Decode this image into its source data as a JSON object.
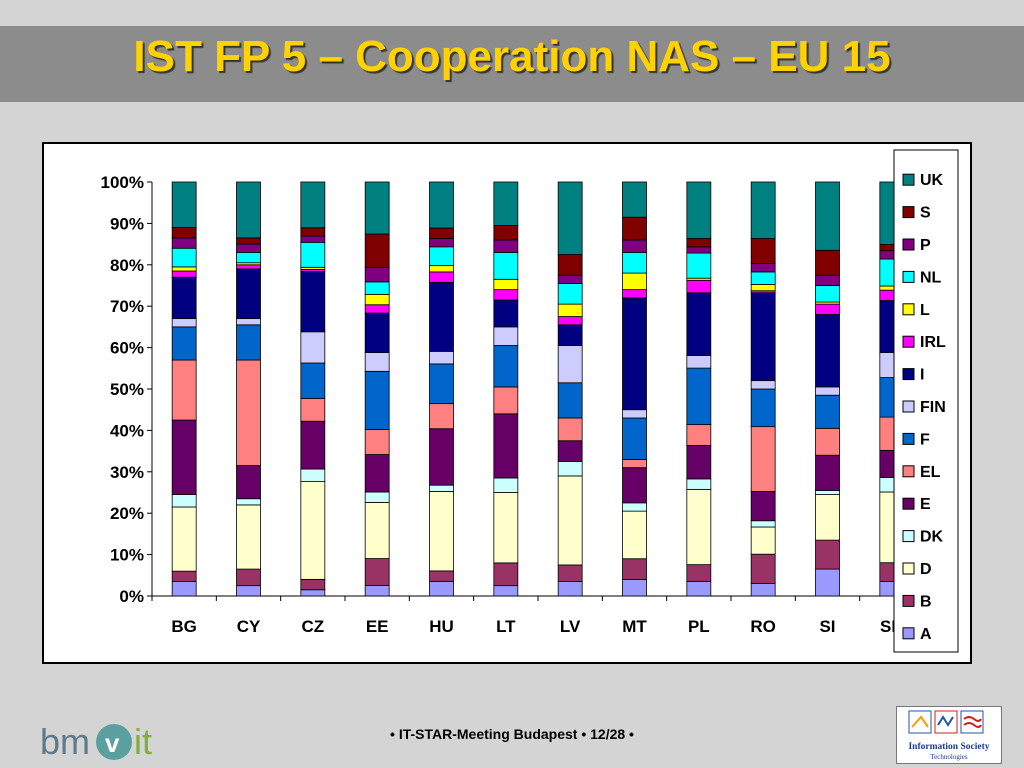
{
  "slide": {
    "title": "IST FP 5 – Cooperation NAS – EU 15",
    "footer": "• IT-STAR-Meeting Budapest • 12/28 •",
    "logo_left_text": "bmvit",
    "logo_right_text": "Information Society Technologies"
  },
  "colors": {
    "title": "#ffd200",
    "title_bar": "#8c8c8c",
    "background": "#d4d4d4"
  },
  "chart_data": {
    "type": "bar",
    "stacked": "percent",
    "categories": [
      "BG",
      "CY",
      "CZ",
      "EE",
      "HU",
      "LT",
      "LV",
      "MT",
      "PL",
      "RO",
      "SI",
      "SK"
    ],
    "ylim": [
      0,
      100
    ],
    "yticks": [
      "0%",
      "10%",
      "20%",
      "30%",
      "40%",
      "50%",
      "60%",
      "70%",
      "80%",
      "90%",
      "100%"
    ],
    "legend_position": "right",
    "series": [
      {
        "name": "A",
        "color": "#9999ff",
        "values": [
          3.5,
          2.5,
          1.5,
          2.5,
          3.5,
          2.5,
          3.5,
          4.0,
          3.5,
          3.0,
          6.5,
          3.5
        ]
      },
      {
        "name": "B",
        "color": "#993366",
        "values": [
          2.5,
          4.0,
          2.5,
          6.5,
          2.5,
          5.5,
          4.0,
          5.0,
          4.0,
          7.0,
          7.0,
          4.5
        ]
      },
      {
        "name": "D",
        "color": "#ffffcc",
        "values": [
          15.5,
          15.5,
          23.5,
          13.5,
          19.0,
          17.0,
          21.5,
          11.5,
          18.0,
          6.5,
          11.0,
          17.0
        ]
      },
      {
        "name": "DK",
        "color": "#ccffff",
        "values": [
          3.0,
          1.5,
          3.0,
          2.5,
          1.5,
          3.5,
          3.5,
          2.0,
          2.5,
          1.5,
          1.0,
          3.5
        ]
      },
      {
        "name": "E",
        "color": "#660066",
        "values": [
          18.0,
          8.0,
          11.5,
          9.0,
          13.5,
          15.5,
          5.0,
          8.5,
          8.0,
          7.0,
          8.5,
          6.5
        ]
      },
      {
        "name": "EL",
        "color": "#ff8080",
        "values": [
          14.5,
          25.5,
          5.5,
          6.0,
          6.0,
          6.5,
          5.5,
          2.0,
          5.0,
          15.5,
          6.5,
          8.0
        ]
      },
      {
        "name": "F",
        "color": "#0066cc",
        "values": [
          8.0,
          8.5,
          8.5,
          14.0,
          9.5,
          10.0,
          8.5,
          10.0,
          13.5,
          9.0,
          8.0,
          9.5
        ]
      },
      {
        "name": "FIN",
        "color": "#ccccff",
        "values": [
          2.0,
          1.5,
          7.5,
          4.5,
          3.0,
          4.5,
          9.0,
          2.0,
          3.0,
          2.0,
          2.0,
          6.0
        ]
      },
      {
        "name": "I",
        "color": "#000080",
        "values": [
          10.0,
          12.0,
          14.5,
          9.5,
          16.5,
          6.5,
          5.0,
          27.0,
          15.0,
          21.0,
          17.5,
          12.5
        ]
      },
      {
        "name": "IRL",
        "color": "#ff00ff",
        "values": [
          1.5,
          1.0,
          0.5,
          2.0,
          2.5,
          2.5,
          2.0,
          2.0,
          3.0,
          0.5,
          2.5,
          2.5
        ]
      },
      {
        "name": "L",
        "color": "#ffff00",
        "values": [
          1.0,
          0.5,
          0.5,
          2.5,
          1.5,
          2.5,
          3.0,
          4.0,
          0.5,
          1.5,
          0.5,
          1.0
        ]
      },
      {
        "name": "NL",
        "color": "#00ffff",
        "values": [
          4.5,
          2.5,
          6.0,
          3.0,
          4.5,
          6.5,
          5.0,
          5.0,
          6.0,
          3.0,
          4.0,
          6.5
        ]
      },
      {
        "name": "P",
        "color": "#800080",
        "values": [
          2.5,
          2.0,
          1.5,
          3.5,
          2.0,
          3.0,
          2.0,
          3.0,
          1.5,
          2.0,
          2.5,
          2.0
        ]
      },
      {
        "name": "S",
        "color": "#800000",
        "values": [
          2.5,
          1.5,
          2.0,
          8.0,
          2.5,
          3.5,
          5.0,
          5.5,
          2.0,
          6.0,
          6.0,
          1.5
        ]
      },
      {
        "name": "UK",
        "color": "#008080",
        "values": [
          11.0,
          13.5,
          11.0,
          12.5,
          11.0,
          10.5,
          17.5,
          8.5,
          13.5,
          13.5,
          16.5,
          15.0
        ]
      }
    ]
  }
}
